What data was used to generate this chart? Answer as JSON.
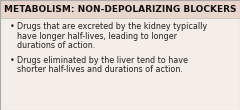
{
  "title": "METABOLISM: NON-DEPOLARIZING BLOCKERS",
  "title_bg": "#e8d5cc",
  "body_bg": "#f5ede8",
  "title_color": "#111111",
  "body_color": "#222222",
  "bullet1_line1": "Drugs that are excreted by the kidney typically",
  "bullet1_line2": "have longer half-lives, leading to longer",
  "bullet1_line3": "durations of action.",
  "bullet2_line1": "Drugs eliminated by the liver tend to have",
  "bullet2_line2": "shorter half-lives and durations of action.",
  "title_fontsize": 6.5,
  "body_fontsize": 5.8,
  "figwidth": 2.4,
  "figheight": 1.1,
  "dpi": 100
}
